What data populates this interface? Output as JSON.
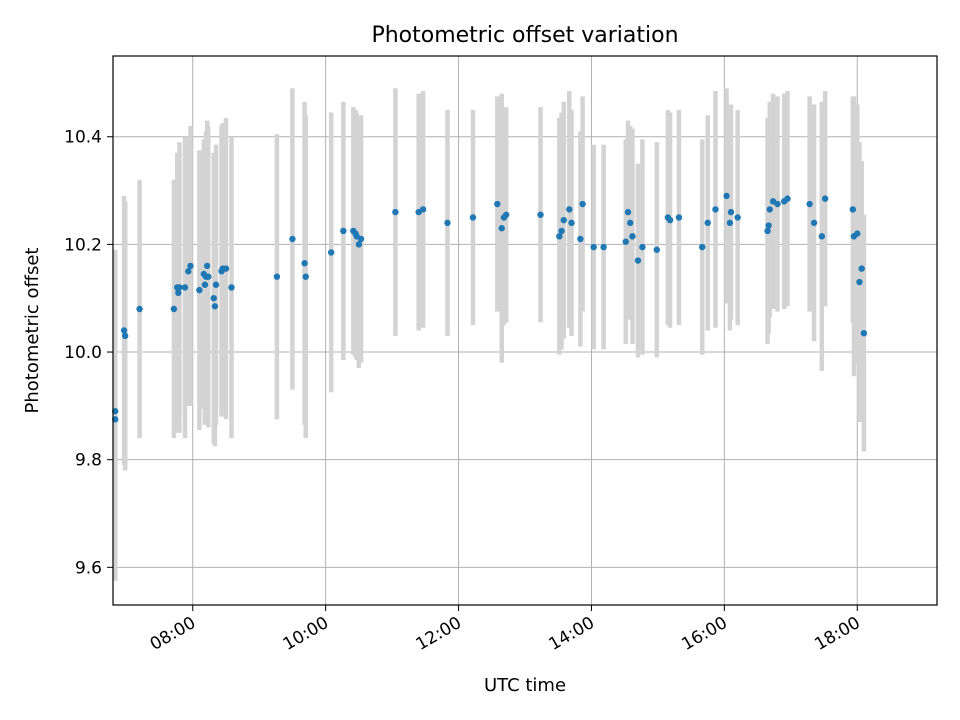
{
  "chart_data": {
    "type": "scatter",
    "title": "Photometric offset variation",
    "xlabel": "UTC time",
    "ylabel": "Photometric offset",
    "xlim": [
      "06:48",
      "19:12"
    ],
    "ylim": [
      9.53,
      10.55
    ],
    "xticks": [
      "08:00",
      "10:00",
      "12:00",
      "14:00",
      "16:00",
      "18:00"
    ],
    "yticks": [
      9.6,
      9.8,
      10.0,
      10.2,
      10.4
    ],
    "grid": true,
    "colors": {
      "points": "#1f77b4",
      "errorbars": "#d3d3d3",
      "grid": "#b0b0b0"
    },
    "series": [
      {
        "x": [
          "06:50",
          "06:50",
          "06:58",
          "06:59",
          "07:12",
          "07:43",
          "07:46",
          "07:47",
          "07:48",
          "07:53",
          "07:56",
          "07:58",
          "08:06",
          "08:10",
          "08:11",
          "08:12",
          "08:13",
          "08:14",
          "08:19",
          "08:20",
          "08:21",
          "08:26",
          "08:27",
          "08:30",
          "08:35",
          "09:16",
          "09:30",
          "09:41",
          "09:42",
          "10:05",
          "10:16",
          "10:25",
          "10:27",
          "10:28",
          "10:30",
          "10:32",
          "11:03",
          "11:24",
          "11:28",
          "11:50",
          "12:13",
          "12:35",
          "12:39",
          "12:41",
          "12:43",
          "13:14",
          "13:31",
          "13:33",
          "13:35",
          "13:40",
          "13:42",
          "13:50",
          "13:52",
          "14:02",
          "14:11",
          "14:31",
          "14:33",
          "14:35",
          "14:37",
          "14:42",
          "14:46",
          "14:59",
          "15:09",
          "15:11",
          "15:19",
          "15:40",
          "15:45",
          "15:52",
          "16:02",
          "16:05",
          "16:06",
          "16:12",
          "16:39",
          "16:40",
          "16:41",
          "16:44",
          "16:48",
          "16:54",
          "16:57",
          "17:17",
          "17:21",
          "17:28",
          "17:31",
          "17:56",
          "17:57",
          "18:00",
          "18:02",
          "18:04",
          "18:06"
        ],
        "y": [
          9.89,
          9.875,
          10.04,
          10.03,
          10.08,
          10.08,
          10.12,
          10.11,
          10.12,
          10.12,
          10.15,
          10.16,
          10.115,
          10.145,
          10.125,
          10.14,
          10.16,
          10.14,
          10.1,
          10.085,
          10.125,
          10.15,
          10.155,
          10.155,
          10.12,
          10.14,
          10.21,
          10.165,
          10.14,
          10.185,
          10.225,
          10.225,
          10.22,
          10.215,
          10.2,
          10.21,
          10.26,
          10.26,
          10.265,
          10.24,
          10.25,
          10.275,
          10.23,
          10.25,
          10.255,
          10.255,
          10.215,
          10.225,
          10.245,
          10.265,
          10.24,
          10.21,
          10.275,
          10.195,
          10.195,
          10.205,
          10.26,
          10.24,
          10.215,
          10.17,
          10.195,
          10.19,
          10.25,
          10.245,
          10.25,
          10.195,
          10.24,
          10.265,
          10.29,
          10.24,
          10.26,
          10.25,
          10.225,
          10.235,
          10.265,
          10.28,
          10.275,
          10.28,
          10.285,
          10.275,
          10.24,
          10.215,
          10.285,
          10.265,
          10.215,
          10.22,
          10.13,
          10.155,
          10.035
        ],
        "err": [
          0.3,
          0.3,
          0.25,
          0.25,
          0.24,
          0.24,
          0.25,
          0.26,
          0.27,
          0.28,
          0.25,
          0.26,
          0.26,
          0.25,
          0.26,
          0.27,
          0.27,
          0.28,
          0.27,
          0.26,
          0.26,
          0.27,
          0.27,
          0.28,
          0.28,
          0.265,
          0.28,
          0.3,
          0.3,
          0.26,
          0.24,
          0.23,
          0.23,
          0.23,
          0.23,
          0.23,
          0.23,
          0.22,
          0.22,
          0.21,
          0.2,
          0.2,
          0.25,
          0.2,
          0.2,
          0.2,
          0.22,
          0.22,
          0.22,
          0.22,
          0.21,
          0.2,
          0.2,
          0.19,
          0.19,
          0.19,
          0.17,
          0.18,
          0.2,
          0.18,
          0.2,
          0.2,
          0.2,
          0.2,
          0.2,
          0.2,
          0.2,
          0.22,
          0.2,
          0.2,
          0.2,
          0.2,
          0.21,
          0.2,
          0.2,
          0.2,
          0.2,
          0.2,
          0.2,
          0.2,
          0.22,
          0.25,
          0.2,
          0.21,
          0.26,
          0.24,
          0.26,
          0.2,
          0.22
        ]
      }
    ]
  }
}
